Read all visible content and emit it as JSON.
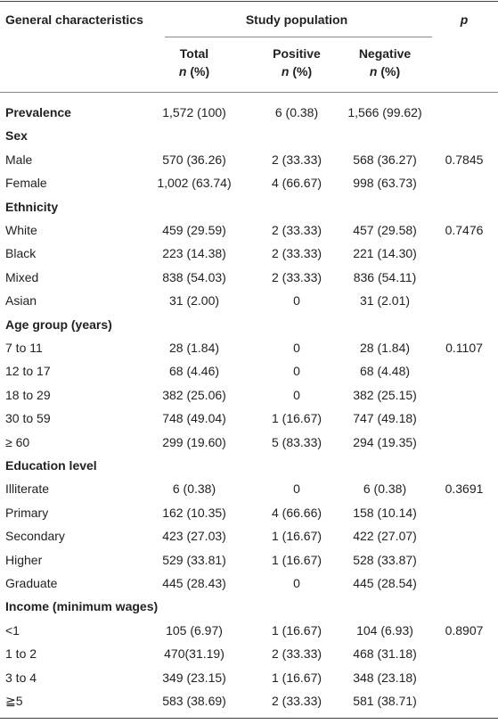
{
  "header": {
    "characteristics": "General characteristics",
    "group": "Study population",
    "p": "p",
    "columns": [
      {
        "title": "Total",
        "var": "n",
        "unit": "(%)"
      },
      {
        "title": "Positive",
        "var": "n",
        "unit": "(%)"
      },
      {
        "title": "Negative",
        "var": "n",
        "unit": "(%)"
      }
    ]
  },
  "sections": [
    {
      "title": "Prevalence",
      "values": [
        "1,572 (100)",
        "6 (0.38)",
        "1,566 (99.62)"
      ]
    },
    {
      "title": "Sex",
      "p": "0.7845",
      "rows": [
        [
          "Male",
          "570 (36.26)",
          "2 (33.33)",
          "568 (36.27)"
        ],
        [
          "Female",
          "1,002 (63.74)",
          "4 (66.67)",
          "998 (63.73)"
        ]
      ]
    },
    {
      "title": "Ethnicity",
      "p": "0.7476",
      "rows": [
        [
          "White",
          "459 (29.59)",
          "2 (33.33)",
          "457 (29.58)"
        ],
        [
          "Black",
          "223 (14.38)",
          "2 (33.33)",
          "221 (14.30)"
        ],
        [
          "Mixed",
          "838 (54.03)",
          "2 (33.33)",
          "836 (54.11)"
        ],
        [
          "Asian",
          "31 (2.00)",
          "0",
          "31 (2.01)"
        ]
      ]
    },
    {
      "title": "Age group (years)",
      "p": "0.1107",
      "rows": [
        [
          "7 to 11",
          "28 (1.84)",
          "0",
          "28 (1.84)"
        ],
        [
          "12 to 17",
          "68 (4.46)",
          "0",
          "68 (4.48)"
        ],
        [
          "18 to 29",
          "382 (25.06)",
          "0",
          "382 (25.15)"
        ],
        [
          "30 to 59",
          "748 (49.04)",
          "1 (16.67)",
          "747 (49.18)"
        ],
        [
          "≥ 60",
          "299 (19.60)",
          "5 (83.33)",
          "294 (19.35)"
        ]
      ]
    },
    {
      "title": "Education level",
      "p": "0.3691",
      "rows": [
        [
          "Illiterate",
          "6 (0.38)",
          "0",
          "6 (0.38)"
        ],
        [
          "Primary",
          "162 (10.35)",
          "4 (66.66)",
          "158 (10.14)"
        ],
        [
          "Secondary",
          "423 (27.03)",
          "1 (16.67)",
          "422 (27.07)"
        ],
        [
          "Higher",
          "529 (33.81)",
          "1 (16.67)",
          "528 (33.87)"
        ],
        [
          "Graduate",
          "445 (28.43)",
          "0",
          "445 (28.54)"
        ]
      ]
    },
    {
      "title": "Income (minimum wages)",
      "p": "0.8907",
      "rows": [
        [
          "<1",
          "105 (6.97)",
          "1 (16.67)",
          "104 (6.93)"
        ],
        [
          "1 to 2",
          "470(31.19)",
          "2 (33.33)",
          "468 (31.18)"
        ],
        [
          "3 to 4",
          "349 (23.15)",
          "1 (16.67)",
          "348 (23.18)"
        ],
        [
          "≧5",
          "583 (38.69)",
          "2 (33.33)",
          "581 (38.71)"
        ]
      ]
    }
  ]
}
